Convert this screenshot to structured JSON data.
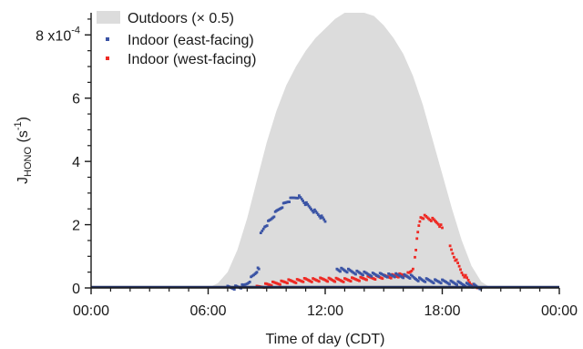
{
  "chart_data": {
    "type": "area",
    "xlabel": "Time of day (CDT)",
    "ylabel": {
      "base": "J",
      "subscript": "HONO",
      "units_open": " (s",
      "units_exponent": "-1",
      "units_close": ")"
    },
    "xlim": [
      0,
      24
    ],
    "ylim": [
      0,
      0.00087
    ],
    "x_tick_values": [
      0,
      6,
      12,
      18,
      24
    ],
    "x_tick_labels": [
      "00:00",
      "06:00",
      "12:00",
      "18:00",
      "00:00"
    ],
    "y_tick_values": [
      0,
      0.0002,
      0.0004,
      0.0006,
      0.0008
    ],
    "y_tick_labels": [
      "0",
      "2",
      "4",
      "6",
      "8 x10"
    ],
    "y_tick_exponent": "-4",
    "grid": false,
    "legend_position": "top-left",
    "colors": {
      "outdoors": "#dcdcdc",
      "east": "#3b54a5",
      "west": "#ee2a24",
      "axis": "#1a1a1a",
      "baseline": "#1f2d5c"
    },
    "series": [
      {
        "name": "Outdoors (× 0.5)",
        "kind": "area",
        "points": [
          [
            6.0,
            0.0
          ],
          [
            6.5,
            1.5e-05
          ],
          [
            7.0,
            5e-05
          ],
          [
            7.5,
            0.00012
          ],
          [
            8.0,
            0.00022
          ],
          [
            8.5,
            0.00034
          ],
          [
            9.0,
            0.00046
          ],
          [
            9.5,
            0.00056
          ],
          [
            10.0,
            0.00064
          ],
          [
            10.5,
            0.0007
          ],
          [
            11.0,
            0.00075
          ],
          [
            11.5,
            0.00079
          ],
          [
            12.0,
            0.00082
          ],
          [
            12.5,
            0.00085
          ],
          [
            13.0,
            0.00087
          ],
          [
            14.0,
            0.00087
          ],
          [
            14.5,
            0.00086
          ],
          [
            15.0,
            0.00083
          ],
          [
            15.5,
            0.00079
          ],
          [
            16.0,
            0.00074
          ],
          [
            16.5,
            0.00067
          ],
          [
            17.0,
            0.00058
          ],
          [
            17.5,
            0.00047
          ],
          [
            18.0,
            0.00036
          ],
          [
            18.5,
            0.00025
          ],
          [
            19.0,
            0.00015
          ],
          [
            19.5,
            7e-05
          ],
          [
            20.0,
            2e-05
          ],
          [
            20.5,
            0.0
          ]
        ]
      },
      {
        "name": "Indoor (east-facing)",
        "kind": "points",
        "segments": [
          [
            [
              7.0,
              0.0
            ],
            [
              7.4,
              2e-06
            ],
            [
              7.8,
              5e-06
            ],
            [
              8.0,
              1.5e-05
            ],
            [
              8.2,
              3e-05
            ],
            [
              8.4,
              4.5e-05
            ],
            [
              8.5,
              5.5e-05
            ],
            [
              8.6,
              6e-05
            ]
          ],
          [
            [
              8.7,
              0.00017
            ],
            [
              8.9,
              0.000195
            ],
            [
              9.2,
              0.000215
            ],
            [
              9.5,
              0.00024
            ],
            [
              9.8,
              0.00026
            ],
            [
              10.1,
              0.000275
            ],
            [
              10.4,
              0.000285
            ],
            [
              10.6,
              0.00029
            ],
            [
              10.8,
              0.00028
            ],
            [
              11.1,
              0.00026
            ],
            [
              11.4,
              0.000245
            ],
            [
              11.7,
              0.00023
            ],
            [
              12.0,
              0.00021
            ]
          ],
          [
            [
              12.6,
              6e-05
            ],
            [
              13.0,
              5.6e-05
            ],
            [
              13.5,
              5e-05
            ],
            [
              14.0,
              4.5e-05
            ],
            [
              14.5,
              4.2e-05
            ],
            [
              15.0,
              4e-05
            ],
            [
              15.5,
              4e-05
            ],
            [
              16.0,
              3.8e-05
            ],
            [
              16.4,
              3.5e-05
            ],
            [
              16.6,
              3e-05
            ],
            [
              17.0,
              2.5e-05
            ],
            [
              17.5,
              2.2e-05
            ],
            [
              18.0,
              2e-05
            ],
            [
              18.5,
              1.7e-05
            ],
            [
              19.0,
              1.3e-05
            ],
            [
              19.5,
              8e-06
            ],
            [
              19.8,
              3e-06
            ],
            [
              20.0,
              0.0
            ]
          ]
        ]
      },
      {
        "name": "Indoor (west-facing)",
        "kind": "points",
        "segments": [
          [
            [
              8.5,
              0.0
            ],
            [
              9.0,
              1e-05
            ],
            [
              9.5,
              1.5e-05
            ],
            [
              10.0,
              2e-05
            ],
            [
              10.5,
              2.2e-05
            ],
            [
              11.0,
              2.5e-05
            ],
            [
              11.5,
              2.5e-05
            ],
            [
              12.0,
              2.7e-05
            ],
            [
              12.5,
              2.5e-05
            ],
            [
              13.0,
              2.5e-05
            ],
            [
              13.5,
              2.7e-05
            ],
            [
              14.0,
              3e-05
            ],
            [
              14.5,
              3.3e-05
            ],
            [
              15.0,
              3.5e-05
            ],
            [
              15.5,
              3.8e-05
            ],
            [
              16.0,
              4e-05
            ],
            [
              16.3,
              4.5e-05
            ],
            [
              16.5,
              6e-05
            ]
          ],
          [
            [
              16.6,
              0.0001
            ],
            [
              16.7,
              0.00015
            ],
            [
              16.8,
              0.000195
            ],
            [
              16.9,
              0.000225
            ],
            [
              17.1,
              0.000225
            ],
            [
              17.3,
              0.00022
            ],
            [
              17.5,
              0.000215
            ],
            [
              17.8,
              0.000205
            ],
            [
              18.0,
              0.00019
            ]
          ],
          [
            [
              18.4,
              0.00013
            ],
            [
              18.6,
              0.0001
            ],
            [
              18.8,
              7.5e-05
            ],
            [
              19.0,
              5e-05
            ],
            [
              19.2,
              3.5e-05
            ],
            [
              19.4,
              1.8e-05
            ],
            [
              19.6,
              6e-06
            ],
            [
              19.8,
              0.0
            ]
          ]
        ]
      }
    ]
  }
}
